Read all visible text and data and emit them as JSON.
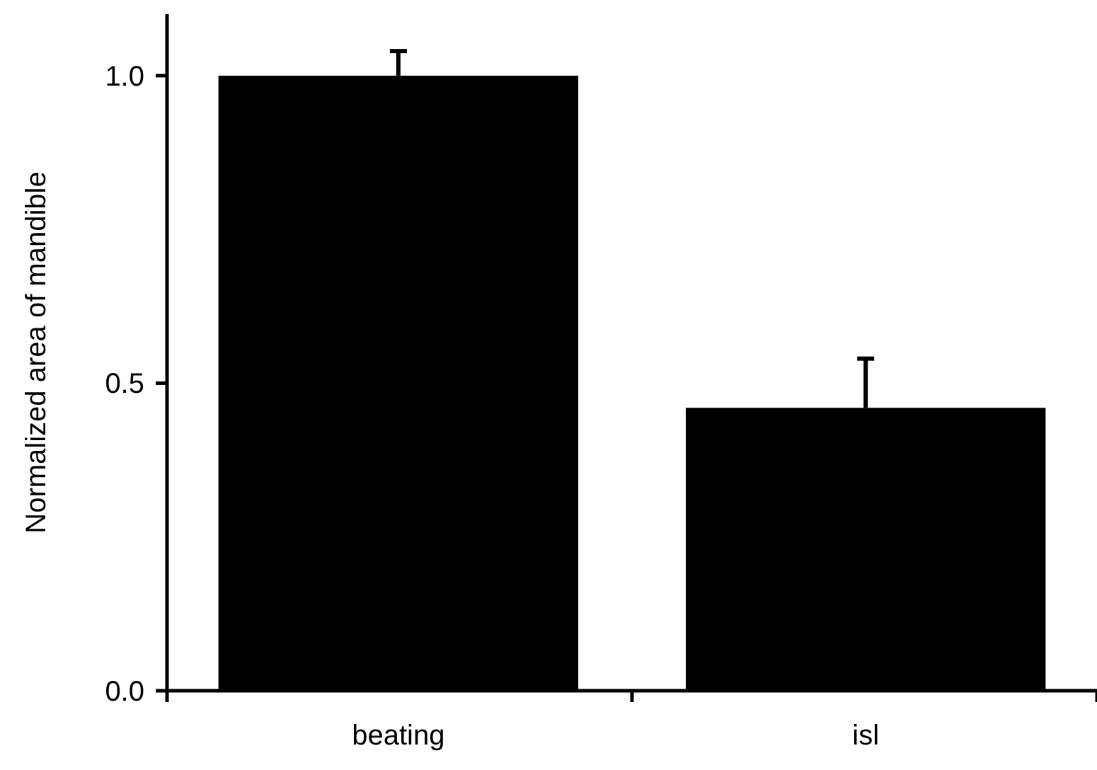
{
  "chart_data": {
    "type": "bar",
    "ylabel": "Normalized area of mandible",
    "categories": [
      "beating",
      "isl"
    ],
    "values": [
      1.0,
      0.46
    ],
    "errors": [
      [
        1.0,
        1.04
      ],
      [
        0.46,
        0.54
      ]
    ],
    "color": "#000000",
    "ylim": [
      0,
      1.1
    ],
    "yticks": [
      {
        "value": 0,
        "label": "0.0"
      },
      {
        "value": 0.5,
        "label": "0.5"
      },
      {
        "value": 1,
        "label": "1.0"
      }
    ],
    "grid": false
  }
}
